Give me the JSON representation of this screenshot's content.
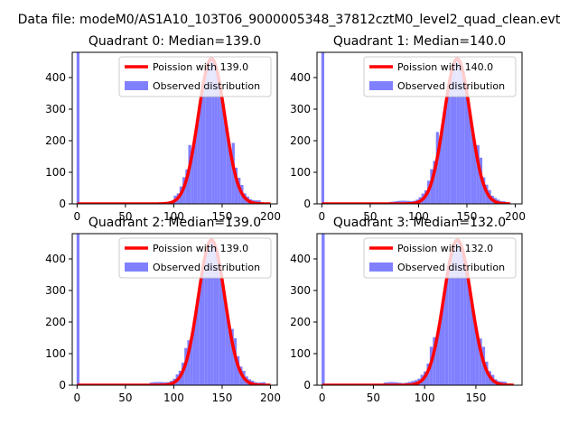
{
  "figure": {
    "suptitle": "Data file: modeM0/AS1A10_103T06_9000005348_37812cztM0_level2_quad_clean.evt"
  },
  "chart_data": [
    {
      "type": "bar",
      "title": "Quadrant 0: Median=139.0",
      "xlim": [
        -5,
        207
      ],
      "ylim": [
        0,
        480
      ],
      "xticks": [
        0,
        50,
        100,
        150,
        200
      ],
      "yticks": [
        0,
        100,
        200,
        300,
        400
      ],
      "mean": 139.0,
      "sigma": 13.7,
      "peak": 460,
      "zero_bar": 480,
      "hist_range": [
        100,
        190
      ],
      "legend": {
        "location": "upper right",
        "entries": [
          "Poission with 139.0",
          "Observed distribution"
        ]
      },
      "series": [
        {
          "name": "Poission with 139.0",
          "kind": "line",
          "color": "#ff0000",
          "range": [
            0,
            200
          ]
        },
        {
          "name": "Observed distribution",
          "kind": "histogram",
          "color": "#8080ff"
        }
      ]
    },
    {
      "type": "bar",
      "title": "Quadrant 1: Median=140.0",
      "xlim": [
        -5,
        207
      ],
      "ylim": [
        0,
        480
      ],
      "xticks": [
        0,
        50,
        100,
        150,
        200
      ],
      "yticks": [
        0,
        100,
        200,
        300,
        400
      ],
      "mean": 140.0,
      "sigma": 13.6,
      "peak": 460,
      "zero_bar": 480,
      "hist_range": [
        70,
        190
      ],
      "legend": {
        "location": "upper right",
        "entries": [
          "Poission with 140.0",
          "Observed distribution"
        ]
      },
      "series": [
        {
          "name": "Poission with 140.0",
          "kind": "line",
          "color": "#ff0000",
          "range": [
            0,
            195
          ]
        },
        {
          "name": "Observed distribution",
          "kind": "histogram",
          "color": "#8080ff"
        }
      ]
    },
    {
      "type": "bar",
      "title": "Quadrant 2: Median=139.0",
      "xlim": [
        -5,
        207
      ],
      "ylim": [
        0,
        480
      ],
      "xticks": [
        0,
        50,
        100,
        150,
        200
      ],
      "yticks": [
        0,
        100,
        200,
        300,
        400
      ],
      "mean": 139.0,
      "sigma": 13.7,
      "peak": 460,
      "zero_bar": 480,
      "hist_range": [
        75,
        195
      ],
      "legend": {
        "location": "upper right",
        "entries": [
          "Poission with 139.0",
          "Observed distribution"
        ]
      },
      "series": [
        {
          "name": "Poission with 139.0",
          "kind": "line",
          "color": "#ff0000",
          "range": [
            0,
            200
          ]
        },
        {
          "name": "Observed distribution",
          "kind": "histogram",
          "color": "#8080ff"
        }
      ]
    },
    {
      "type": "bar",
      "title": "Quadrant 3: Median=132.0",
      "xlim": [
        -5,
        195
      ],
      "ylim": [
        0,
        480
      ],
      "xticks": [
        0,
        50,
        100,
        150
      ],
      "yticks": [
        0,
        100,
        200,
        300,
        400
      ],
      "mean": 132.0,
      "sigma": 13.3,
      "peak": 460,
      "zero_bar": 480,
      "hist_range": [
        60,
        180
      ],
      "legend": {
        "location": "upper right",
        "entries": [
          "Poission with 132.0",
          "Observed distribution"
        ]
      },
      "series": [
        {
          "name": "Poission with 132.0",
          "kind": "line",
          "color": "#ff0000",
          "range": [
            0,
            187
          ]
        },
        {
          "name": "Observed distribution",
          "kind": "histogram",
          "color": "#8080ff"
        }
      ]
    }
  ]
}
